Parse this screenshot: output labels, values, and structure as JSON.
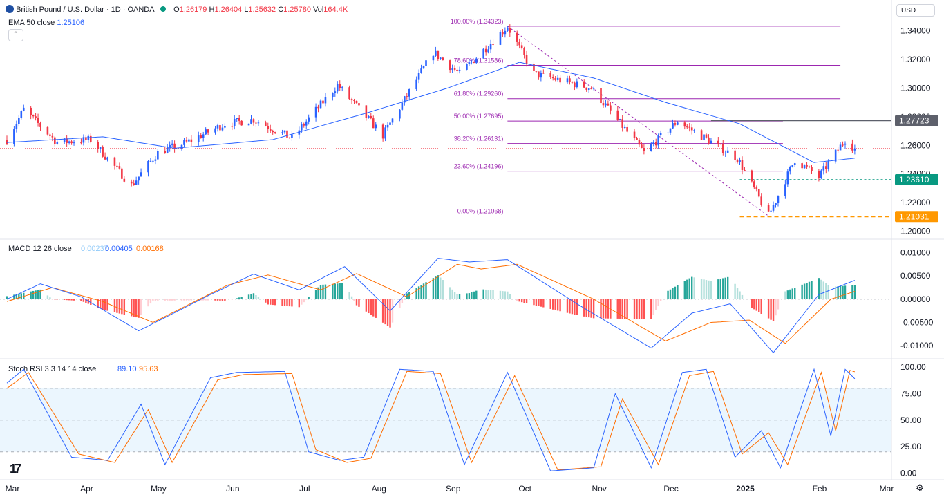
{
  "header": {
    "symbol_title": "British Pound / U.S. Dollar · 1D · OANDA",
    "o_label": "O",
    "o_value": "1.26179",
    "h_label": "H",
    "h_value": "1.26404",
    "l_label": "L",
    "l_value": "1.25632",
    "c_label": "C",
    "c_value": "1.25780",
    "vol_label": "Vol",
    "vol_value": "164.4K",
    "ema_label": "EMA 50 close",
    "ema_value": "1.25106",
    "currency": "USD",
    "collapse_icon": "chevron-up-icon"
  },
  "colors": {
    "up": "#089981",
    "up_candle": "#2962ff",
    "down": "#f23645",
    "ema": "#2962ff",
    "fib": "#9c27b0",
    "macd": "#2962ff",
    "signal": "#ff6d00",
    "stoch_k": "#2962ff",
    "stoch_d": "#ff6d00",
    "hist_up_strong": "#26a69a",
    "hist_up_weak": "#b2dfdb",
    "hist_dn_strong": "#ff5252",
    "hist_dn_weak": "#ffcdd2",
    "badge_dark": "#5d606b",
    "badge_green": "#089981",
    "badge_orange": "#ff9800"
  },
  "chart_data": [
    {
      "type": "candlestick",
      "title": "British Pound / U.S. Dollar · 1D · OANDA",
      "ylim": [
        1.195,
        1.347
      ],
      "y_ticks": [
        "1.34000",
        "1.32000",
        "1.30000",
        "1.28000",
        "1.26000",
        "1.24000",
        "1.22000",
        "1.20000"
      ],
      "x_labels": [
        "Mar",
        "Apr",
        "May",
        "Jun",
        "Jul",
        "Aug",
        "Sep",
        "Oct",
        "Nov",
        "Dec",
        "2025",
        "Feb",
        "Mar"
      ],
      "price_path": [
        [
          "2024-03-01",
          1.264
        ],
        [
          "2024-03-08",
          1.285
        ],
        [
          "2024-03-22",
          1.262
        ],
        [
          "2024-04-05",
          1.264
        ],
        [
          "2024-04-22",
          1.232
        ],
        [
          "2024-05-03",
          1.255
        ],
        [
          "2024-05-15",
          1.262
        ],
        [
          "2024-05-31",
          1.275
        ],
        [
          "2024-06-12",
          1.278
        ],
        [
          "2024-06-28",
          1.265
        ],
        [
          "2024-07-17",
          1.302
        ],
        [
          "2024-08-05",
          1.267
        ],
        [
          "2024-08-26",
          1.325
        ],
        [
          "2024-09-06",
          1.31
        ],
        [
          "2024-09-26",
          1.343
        ],
        [
          "2024-10-07",
          1.31
        ],
        [
          "2024-10-31",
          1.3
        ],
        [
          "2024-11-22",
          1.255
        ],
        [
          "2024-12-06",
          1.277
        ],
        [
          "2024-12-31",
          1.251
        ],
        [
          "2025-01-13",
          1.211
        ],
        [
          "2025-01-24",
          1.25
        ],
        [
          "2025-02-03",
          1.238
        ],
        [
          "2025-02-14",
          1.264
        ],
        [
          "2025-02-18",
          1.2578
        ]
      ],
      "ema_path": [
        [
          "2024-03-01",
          1.262
        ],
        [
          "2024-04-10",
          1.266
        ],
        [
          "2024-05-10",
          1.258
        ],
        [
          "2024-06-20",
          1.264
        ],
        [
          "2024-07-30",
          1.283
        ],
        [
          "2024-09-01",
          1.3
        ],
        [
          "2024-10-01",
          1.318
        ],
        [
          "2024-11-01",
          1.307
        ],
        [
          "2024-12-01",
          1.29
        ],
        [
          "2025-01-01",
          1.275
        ],
        [
          "2025-02-01",
          1.248
        ],
        [
          "2025-02-18",
          1.25106
        ]
      ],
      "fibonacci": [
        {
          "label": "100.00% (1.34323)",
          "value": 1.34323
        },
        {
          "label": "78.60% (1.31586)",
          "value": 1.31586
        },
        {
          "label": "61.80% (1.29260)",
          "value": 1.2926
        },
        {
          "label": "50.00% (1.27695)",
          "value": 1.27695
        },
        {
          "label": "38.20% (1.26131)",
          "value": 1.26131
        },
        {
          "label": "23.60% (1.24196)",
          "value": 1.24196
        },
        {
          "label": "0.00% (1.21068)",
          "value": 1.21068
        }
      ],
      "levels": [
        {
          "name": "resistance",
          "value": 1.27723,
          "label": "1.27723",
          "style": "solid",
          "color": "#5d606b"
        },
        {
          "name": "support",
          "value": 1.2361,
          "label": "1.23610",
          "style": "dashed",
          "color": "#089981"
        },
        {
          "name": "low",
          "value": 1.21031,
          "label": "1.21031",
          "style": "dashed",
          "color": "#ff9800"
        }
      ],
      "trendline": [
        [
          "2024-09-26",
          1.3432
        ],
        [
          "2025-01-13",
          1.2107
        ]
      ],
      "last_price": 1.2578
    },
    {
      "type": "line",
      "title": "MACD 12 26 close",
      "values_shown": [
        "0.00237",
        "0.00405",
        "0.00168"
      ],
      "ylim": [
        -0.0125,
        0.0123
      ],
      "y_ticks": [
        "0.01000",
        "0.00500",
        "0.00000",
        "-0.00500",
        "-0.01000"
      ],
      "macd_path": [
        [
          "2024-03-01",
          0.0
        ],
        [
          "2024-03-15",
          0.0033
        ],
        [
          "2024-04-01",
          0.0005
        ],
        [
          "2024-04-25",
          -0.0068
        ],
        [
          "2024-05-25",
          0.001
        ],
        [
          "2024-06-12",
          0.0054
        ],
        [
          "2024-07-01",
          0.002
        ],
        [
          "2024-07-20",
          0.007
        ],
        [
          "2024-08-08",
          -0.0025
        ],
        [
          "2024-08-28",
          0.0088
        ],
        [
          "2024-09-10",
          0.008
        ],
        [
          "2024-09-26",
          0.0085
        ],
        [
          "2024-10-25",
          -0.001
        ],
        [
          "2024-11-25",
          -0.0105
        ],
        [
          "2024-12-12",
          -0.003
        ],
        [
          "2024-12-28",
          -0.001
        ],
        [
          "2025-01-15",
          -0.0115
        ],
        [
          "2025-02-03",
          0.001
        ],
        [
          "2025-02-18",
          0.00405
        ]
      ],
      "signal_path": [
        [
          "2024-03-01",
          -0.0005
        ],
        [
          "2024-03-20",
          0.0025
        ],
        [
          "2024-04-10",
          -0.0005
        ],
        [
          "2024-05-01",
          -0.005
        ],
        [
          "2024-06-01",
          0.003
        ],
        [
          "2024-06-18",
          0.0052
        ],
        [
          "2024-07-10",
          0.002
        ],
        [
          "2024-07-25",
          0.0055
        ],
        [
          "2024-08-15",
          0.0005
        ],
        [
          "2024-09-05",
          0.0075
        ],
        [
          "2024-09-15",
          0.0065
        ],
        [
          "2024-09-30",
          0.0075
        ],
        [
          "2024-11-01",
          0.0
        ],
        [
          "2024-12-01",
          -0.009
        ],
        [
          "2024-12-20",
          -0.005
        ],
        [
          "2025-01-05",
          -0.0045
        ],
        [
          "2025-01-20",
          -0.0095
        ],
        [
          "2025-02-08",
          0.0
        ],
        [
          "2025-02-18",
          0.00168
        ]
      ]
    },
    {
      "type": "line",
      "title": "Stoch RSI 3 3 14 14 close",
      "values_shown": [
        "89.10",
        "95.63"
      ],
      "ylim": [
        -5,
        106
      ],
      "y_ticks": [
        "100.00",
        "75.00",
        "50.00",
        "25.00",
        "0.00"
      ],
      "band": [
        20,
        80
      ],
      "k_path": [
        [
          "2024-03-01",
          85
        ],
        [
          "2024-03-08",
          98
        ],
        [
          "2024-03-28",
          15
        ],
        [
          "2024-04-12",
          12
        ],
        [
          "2024-04-26",
          65
        ],
        [
          "2024-05-06",
          8
        ],
        [
          "2024-05-25",
          90
        ],
        [
          "2024-06-05",
          95
        ],
        [
          "2024-06-25",
          96
        ],
        [
          "2024-07-05",
          20
        ],
        [
          "2024-07-18",
          12
        ],
        [
          "2024-07-28",
          15
        ],
        [
          "2024-08-12",
          98
        ],
        [
          "2024-08-26",
          96
        ],
        [
          "2024-09-08",
          8
        ],
        [
          "2024-09-26",
          95
        ],
        [
          "2024-10-14",
          2
        ],
        [
          "2024-11-01",
          5
        ],
        [
          "2024-11-10",
          75
        ],
        [
          "2024-11-25",
          5
        ],
        [
          "2024-12-08",
          95
        ],
        [
          "2024-12-18",
          98
        ],
        [
          "2024-12-30",
          15
        ],
        [
          "2025-01-10",
          40
        ],
        [
          "2025-01-18",
          5
        ],
        [
          "2025-02-01",
          98
        ],
        [
          "2025-02-08",
          35
        ],
        [
          "2025-02-14",
          98
        ],
        [
          "2025-02-18",
          89.1
        ]
      ],
      "d_path": [
        [
          "2024-03-01",
          80
        ],
        [
          "2024-03-10",
          95
        ],
        [
          "2024-03-31",
          18
        ],
        [
          "2024-04-15",
          10
        ],
        [
          "2024-04-29",
          60
        ],
        [
          "2024-05-09",
          10
        ],
        [
          "2024-05-28",
          88
        ],
        [
          "2024-06-08",
          93
        ],
        [
          "2024-06-28",
          94
        ],
        [
          "2024-07-08",
          22
        ],
        [
          "2024-07-21",
          10
        ],
        [
          "2024-07-31",
          14
        ],
        [
          "2024-08-15",
          96
        ],
        [
          "2024-08-29",
          94
        ],
        [
          "2024-09-11",
          10
        ],
        [
          "2024-09-29",
          92
        ],
        [
          "2024-10-17",
          3
        ],
        [
          "2024-11-04",
          6
        ],
        [
          "2024-11-13",
          70
        ],
        [
          "2024-11-28",
          8
        ],
        [
          "2024-12-11",
          92
        ],
        [
          "2024-12-21",
          96
        ],
        [
          "2025-01-02",
          18
        ],
        [
          "2025-01-13",
          38
        ],
        [
          "2025-01-21",
          8
        ],
        [
          "2025-02-04",
          95
        ],
        [
          "2025-02-10",
          40
        ],
        [
          "2025-02-16",
          97
        ],
        [
          "2025-02-18",
          95.63
        ]
      ]
    }
  ]
}
